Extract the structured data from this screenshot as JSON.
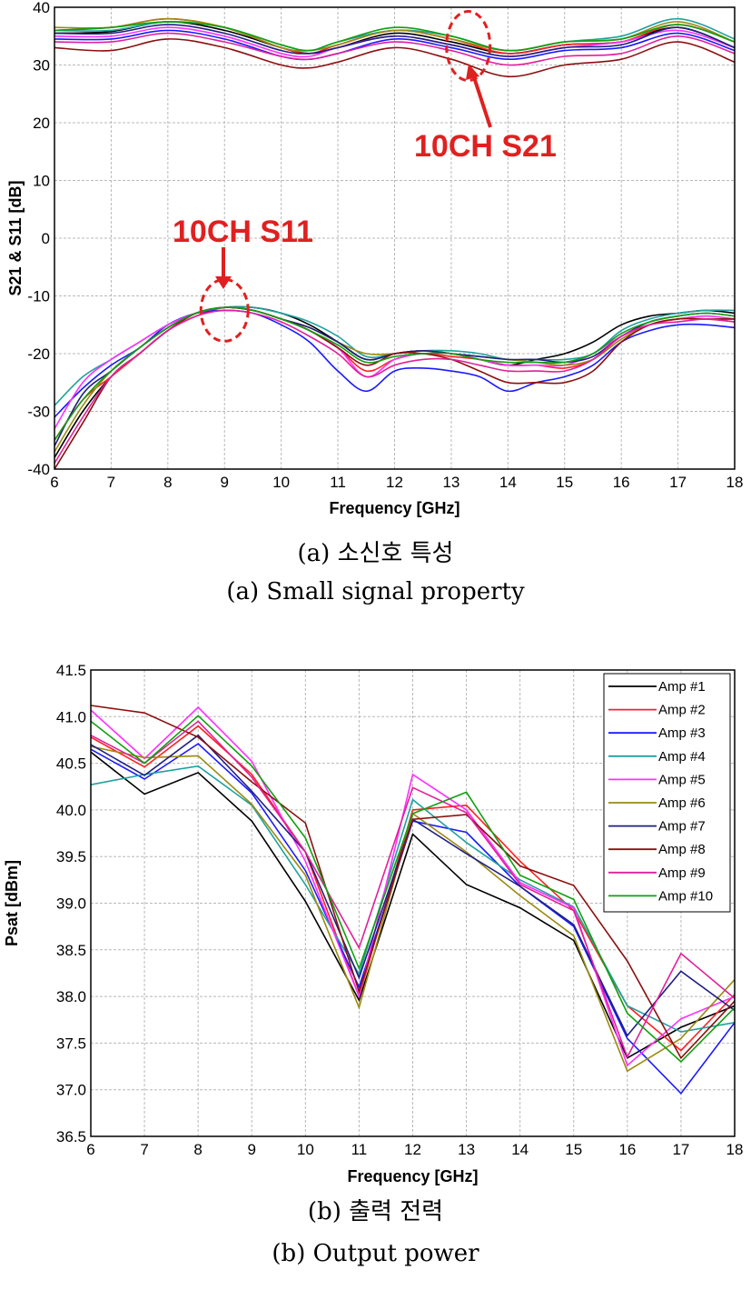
{
  "captions": {
    "a_korean": "(a) 소신호 특성",
    "a_english": "(a) Small signal property",
    "b_korean": "(b) 출력 전력",
    "b_english": "(b) Output power"
  },
  "annotations": {
    "s21": "10CH S21",
    "s11": "10CH S11"
  },
  "chart_data": [
    {
      "type": "line",
      "xlabel": "Frequency [GHz]",
      "ylabel": "S21 & S11 [dB]",
      "xlim": [
        6,
        18
      ],
      "ylim": [
        -40,
        40
      ],
      "xticks": [
        "6",
        "7",
        "8",
        "9",
        "10",
        "11",
        "12",
        "13",
        "14",
        "15",
        "16",
        "17",
        "18"
      ],
      "yticks": [
        "-40",
        "-30",
        "-20",
        "-10",
        "0",
        "10",
        "20",
        "30",
        "40"
      ],
      "grid": true,
      "colors": [
        "#000000",
        "#ff2020",
        "#1a1aff",
        "#20a0a0",
        "#ff30ff",
        "#9a8a10",
        "#202080",
        "#8b1010",
        "#e0209a",
        "#10a010"
      ],
      "x": [
        6,
        7,
        8,
        9,
        10,
        10.5,
        11,
        12,
        13,
        14,
        15,
        16,
        17,
        18
      ],
      "series_s21": [
        {
          "values": [
            35.5,
            35.8,
            37.5,
            36,
            33,
            32,
            33,
            35.5,
            34,
            32,
            33.5,
            34,
            36.5,
            33
          ]
        },
        {
          "values": [
            36,
            36.5,
            38,
            36.5,
            33,
            32,
            33.5,
            36,
            34.5,
            32,
            33.5,
            34,
            37,
            34
          ]
        },
        {
          "values": [
            34.5,
            34.5,
            36,
            34.5,
            31.5,
            31,
            32,
            34.5,
            33,
            31,
            32.5,
            33,
            35.5,
            32.5
          ]
        },
        {
          "values": [
            36,
            36,
            37.5,
            36.5,
            33.5,
            32.5,
            34,
            36,
            35,
            32.5,
            34,
            35,
            38,
            34.5
          ]
        },
        {
          "values": [
            35,
            35,
            36.5,
            35,
            32,
            31.5,
            33,
            35,
            33.5,
            31.5,
            33,
            34,
            36,
            33
          ]
        },
        {
          "values": [
            36.5,
            36.5,
            38,
            36.5,
            33,
            32.5,
            33.5,
            36,
            34.5,
            32.5,
            34,
            34.5,
            37.5,
            34
          ]
        },
        {
          "values": [
            35.5,
            35.5,
            37,
            35.5,
            32.5,
            32,
            33,
            35,
            33.5,
            31.5,
            33,
            33.5,
            36.5,
            33
          ]
        },
        {
          "values": [
            33,
            32.5,
            34.5,
            33,
            30,
            29.5,
            30.5,
            33,
            31,
            28,
            30,
            31,
            34,
            30.5
          ]
        },
        {
          "values": [
            34,
            34,
            35.5,
            34,
            31.5,
            31,
            32,
            34,
            32.5,
            30,
            31.5,
            32,
            35,
            32
          ]
        },
        {
          "values": [
            36,
            36.5,
            37.5,
            36.5,
            33.5,
            32.5,
            34,
            36.5,
            35,
            32.5,
            34,
            34.5,
            37,
            34
          ]
        }
      ],
      "x_s11": [
        6,
        6.5,
        7,
        7.5,
        8,
        8.5,
        9,
        9.5,
        10,
        10.5,
        11,
        11.5,
        12,
        12.5,
        13,
        13.5,
        14,
        14.5,
        15,
        15.5,
        16,
        16.5,
        17,
        17.5,
        18
      ],
      "series_s11": [
        {
          "values": [
            -38,
            -30,
            -24,
            -20,
            -16,
            -13,
            -12,
            -12,
            -13,
            -15,
            -18,
            -21,
            -20,
            -19.5,
            -20,
            -21,
            -22,
            -21,
            -20,
            -18,
            -15,
            -13.5,
            -13,
            -12.5,
            -13
          ]
        },
        {
          "values": [
            -35,
            -28,
            -24,
            -20,
            -16,
            -13.5,
            -12,
            -12.5,
            -14,
            -16,
            -19,
            -23,
            -21,
            -20,
            -20.5,
            -21,
            -22,
            -22,
            -22.5,
            -21,
            -17,
            -15,
            -14,
            -14,
            -14.5
          ]
        },
        {
          "values": [
            -31,
            -26,
            -22,
            -19,
            -15,
            -13,
            -12.5,
            -13,
            -15,
            -18,
            -23,
            -26.5,
            -23,
            -22.5,
            -23,
            -24,
            -26.5,
            -25,
            -24,
            -22,
            -18,
            -16,
            -15,
            -15,
            -15.5
          ]
        },
        {
          "values": [
            -29,
            -24,
            -21,
            -18,
            -15,
            -13,
            -12,
            -12,
            -13,
            -14.5,
            -17,
            -20.5,
            -20,
            -19.5,
            -19.5,
            -20,
            -21,
            -21,
            -21,
            -20,
            -16,
            -14,
            -13,
            -12.5,
            -12.5
          ]
        },
        {
          "values": [
            -33,
            -25,
            -21,
            -18,
            -15,
            -13,
            -12,
            -12.5,
            -14,
            -16,
            -19,
            -24,
            -21,
            -20,
            -20,
            -21,
            -22,
            -22,
            -22,
            -20,
            -17,
            -15,
            -14,
            -13.5,
            -14
          ]
        },
        {
          "values": [
            -37,
            -29,
            -23,
            -19,
            -15.5,
            -13,
            -12,
            -12.5,
            -14,
            -15.5,
            -18,
            -20,
            -20,
            -19.5,
            -20,
            -20.5,
            -21,
            -21.5,
            -22,
            -21,
            -17.5,
            -15,
            -14,
            -14,
            -14
          ]
        },
        {
          "values": [
            -36,
            -27,
            -23,
            -19,
            -15.5,
            -13,
            -12,
            -12.5,
            -14,
            -15.5,
            -18,
            -21,
            -20,
            -19.5,
            -20,
            -20.5,
            -21,
            -21,
            -21.5,
            -20.5,
            -17,
            -14.5,
            -13.5,
            -13,
            -13.5
          ]
        },
        {
          "values": [
            -40,
            -32,
            -24,
            -20,
            -16,
            -13,
            -12,
            -12.5,
            -14,
            -16,
            -19,
            -22,
            -20,
            -20,
            -21,
            -23,
            -25,
            -25,
            -25,
            -23,
            -18,
            -15,
            -14,
            -14,
            -14
          ]
        },
        {
          "values": [
            -39,
            -31,
            -24,
            -20,
            -16,
            -13.5,
            -12.5,
            -13,
            -14.5,
            -17,
            -20,
            -24,
            -22,
            -21,
            -21,
            -22,
            -23,
            -23,
            -23,
            -21,
            -17,
            -15,
            -14.5,
            -14,
            -14.5
          ]
        },
        {
          "values": [
            -35,
            -28,
            -23,
            -19,
            -15.5,
            -13,
            -12,
            -12.5,
            -14,
            -16,
            -18.5,
            -21.5,
            -20.5,
            -20,
            -20,
            -21,
            -21.5,
            -21.5,
            -21.5,
            -20,
            -16.5,
            -14.5,
            -13.5,
            -13,
            -13.5
          ]
        }
      ]
    },
    {
      "type": "line",
      "xlabel": "Frequency [GHz]",
      "ylabel": "Psat [dBm]",
      "xlim": [
        6,
        18
      ],
      "ylim": [
        36.5,
        41.5
      ],
      "xticks": [
        "6",
        "7",
        "8",
        "9",
        "10",
        "11",
        "12",
        "13",
        "14",
        "15",
        "16",
        "17",
        "18"
      ],
      "yticks": [
        "36.5",
        "37.0",
        "37.5",
        "38.0",
        "38.5",
        "39.0",
        "39.5",
        "40.0",
        "40.5",
        "41.0",
        "41.5"
      ],
      "grid": true,
      "legend": "top-right",
      "x": [
        6,
        7,
        8,
        9,
        10,
        11,
        12,
        13,
        14,
        15,
        16,
        17,
        18
      ],
      "series": [
        {
          "name": "Amp #1",
          "color": "#000000",
          "values": [
            40.62,
            40.17,
            40.4,
            39.88,
            39.02,
            37.96,
            39.74,
            39.2,
            38.95,
            38.6,
            37.34,
            37.67,
            37.9
          ]
        },
        {
          "name": "Amp #2",
          "color": "#ff2020",
          "values": [
            40.78,
            40.46,
            40.9,
            40.38,
            39.55,
            38.0,
            40.0,
            40.05,
            39.45,
            38.92,
            37.9,
            37.42,
            38.02
          ]
        },
        {
          "name": "Amp #3",
          "color": "#1a1aff",
          "values": [
            40.65,
            40.33,
            40.71,
            40.18,
            39.35,
            38.1,
            39.88,
            39.76,
            39.18,
            38.75,
            37.55,
            36.96,
            37.72
          ]
        },
        {
          "name": "Amp #4",
          "color": "#20a0a0",
          "values": [
            40.27,
            40.38,
            40.47,
            40.05,
            39.2,
            38.24,
            40.11,
            39.65,
            39.25,
            38.96,
            37.9,
            37.62,
            37.72
          ]
        },
        {
          "name": "Amp #5",
          "color": "#ff30ff",
          "values": [
            41.07,
            40.55,
            41.1,
            40.52,
            39.45,
            38.0,
            40.38,
            40.0,
            39.22,
            38.95,
            37.26,
            37.76,
            38.0
          ]
        },
        {
          "name": "Amp #6",
          "color": "#9a8a10",
          "values": [
            40.68,
            40.56,
            40.58,
            40.06,
            39.3,
            37.88,
            39.96,
            39.55,
            39.08,
            38.65,
            37.2,
            37.55,
            38.18
          ]
        },
        {
          "name": "Amp #7",
          "color": "#202080",
          "values": [
            40.7,
            40.37,
            40.8,
            40.2,
            39.55,
            38.2,
            39.9,
            39.53,
            39.18,
            38.77,
            37.58,
            38.27,
            37.85
          ]
        },
        {
          "name": "Amp #8",
          "color": "#8b1010",
          "values": [
            41.12,
            41.04,
            40.78,
            40.3,
            39.86,
            38.05,
            39.9,
            39.95,
            39.4,
            39.19,
            38.38,
            37.34,
            37.95
          ]
        },
        {
          "name": "Amp #9",
          "color": "#e0209a",
          "values": [
            40.8,
            40.5,
            40.95,
            40.35,
            39.55,
            38.52,
            40.24,
            39.97,
            39.2,
            38.92,
            37.35,
            38.46,
            37.98
          ]
        },
        {
          "name": "Amp #10",
          "color": "#10a010",
          "values": [
            40.95,
            40.5,
            41.01,
            40.47,
            39.7,
            38.3,
            39.96,
            40.19,
            39.3,
            39.04,
            37.82,
            37.3,
            37.88
          ]
        }
      ]
    }
  ]
}
